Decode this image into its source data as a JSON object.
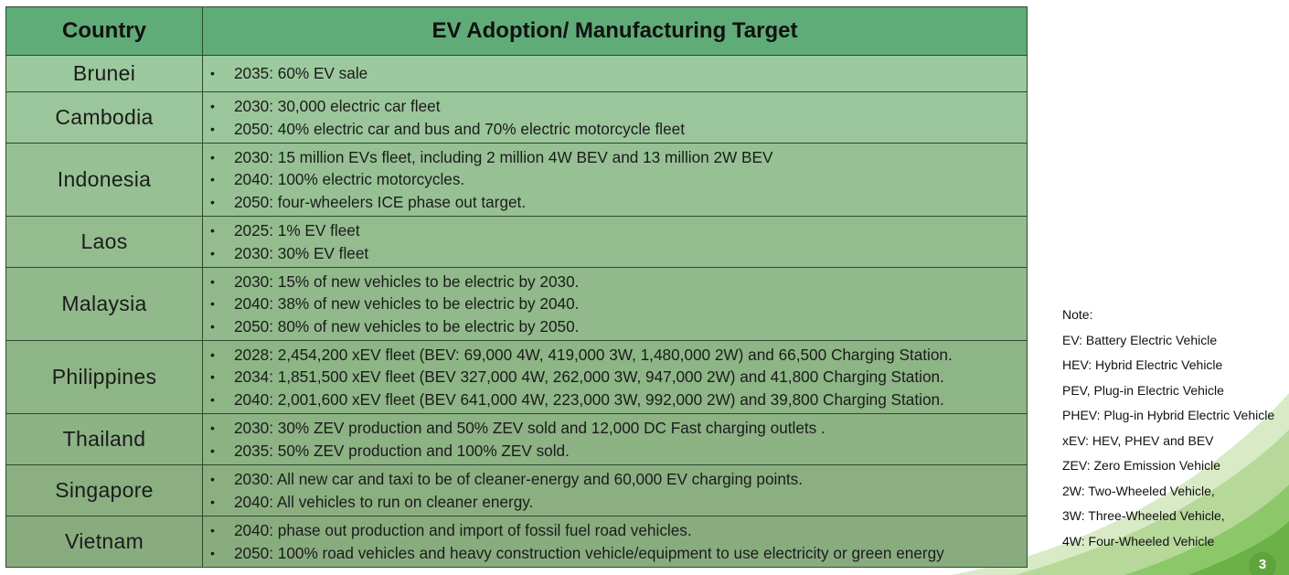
{
  "table": {
    "headers": {
      "country": "Country",
      "target": "EV Adoption/ Manufacturing Target"
    },
    "rows": [
      {
        "country": "Brunei",
        "targets": [
          "2035: 60% EV sale"
        ],
        "bg": "#9cc99e"
      },
      {
        "country": "Cambodia",
        "targets": [
          "2030: 30,000 electric car fleet",
          "2050: 40% electric car and bus and 70% electric motorcycle fleet"
        ],
        "bg": "#9bc69b"
      },
      {
        "country": "Indonesia",
        "targets": [
          "2030: 15 million EVs fleet, including 2 million 4W BEV and 13 million  2W BEV",
          "2040: 100% electric motorcycles.",
          "2050: four-wheelers ICE phase out target."
        ],
        "bg": "#97c195"
      },
      {
        "country": "Laos",
        "targets": [
          "2025: 1% EV fleet",
          "2030: 30% EV fleet"
        ],
        "bg": "#94bc8f"
      },
      {
        "country": "Malaysia",
        "targets": [
          "2030: 15% of new vehicles to be electric by 2030.",
          "2040: 38% of new vehicles to be electric by 2040.",
          "2050: 80% of new vehicles to be electric by 2050."
        ],
        "bg": "#91b98b"
      },
      {
        "country": "Philippines",
        "targets": [
          "2028: 2,454,200  xEV fleet (BEV: 69,000 4W, 419,000 3W, 1,480,000 2W) and 66,500 Charging Station.",
          "2034: 1,851,500 xEV fleet (BEV 327,000 4W, 262,000 3W, 947,000 2W) and 41,800 Charging Station.",
          "2040:  2,001,600 xEV fleet (BEV 641,000 4W, 223,000 3W, 992,000 2W) and  39,800 Charging Station."
        ],
        "bg": "#8eb586"
      },
      {
        "country": "Thailand",
        "targets": [
          "2030: 30% ZEV production and 50% ZEV sold  and 12,000 DC Fast charging outlets .",
          "2035: 50% ZEV production and 100% ZEV sold."
        ],
        "bg": "#8db284"
      },
      {
        "country": "Singapore",
        "targets": [
          "2030: All new car and taxi to be of cleaner-energy  and  60,000 EV charging points.",
          "2040: All vehicles to run on cleaner energy."
        ],
        "bg": "#8baf81"
      },
      {
        "country": "Vietnam",
        "targets": [
          "2040: phase out production and import of fossil fuel road vehicles.",
          "2050: 100% road vehicles and heavy construction vehicle/equipment to use electricity or green energy"
        ],
        "bg": "#89ac7e"
      }
    ]
  },
  "note": {
    "title": "Note:",
    "lines": [
      "EV: Battery Electric Vehicle",
      "HEV: Hybrid Electric Vehicle",
      "PEV, Plug-in Electric Vehicle",
      "PHEV: Plug-in Hybrid Electric Vehicle",
      "xEV:  HEV, PHEV and BEV",
      "ZEV: Zero Emission Vehicle",
      "2W: Two-Wheeled Vehicle,",
      "3W: Three-Wheeled Vehicle,",
      "4W: Four-Wheeled Vehicle"
    ]
  },
  "page_number": "3",
  "colors": {
    "header": "#5fac78",
    "deco_light": "#c9e2b3",
    "deco_mid": "#8cc86a",
    "deco_dark": "#5ea43c"
  }
}
